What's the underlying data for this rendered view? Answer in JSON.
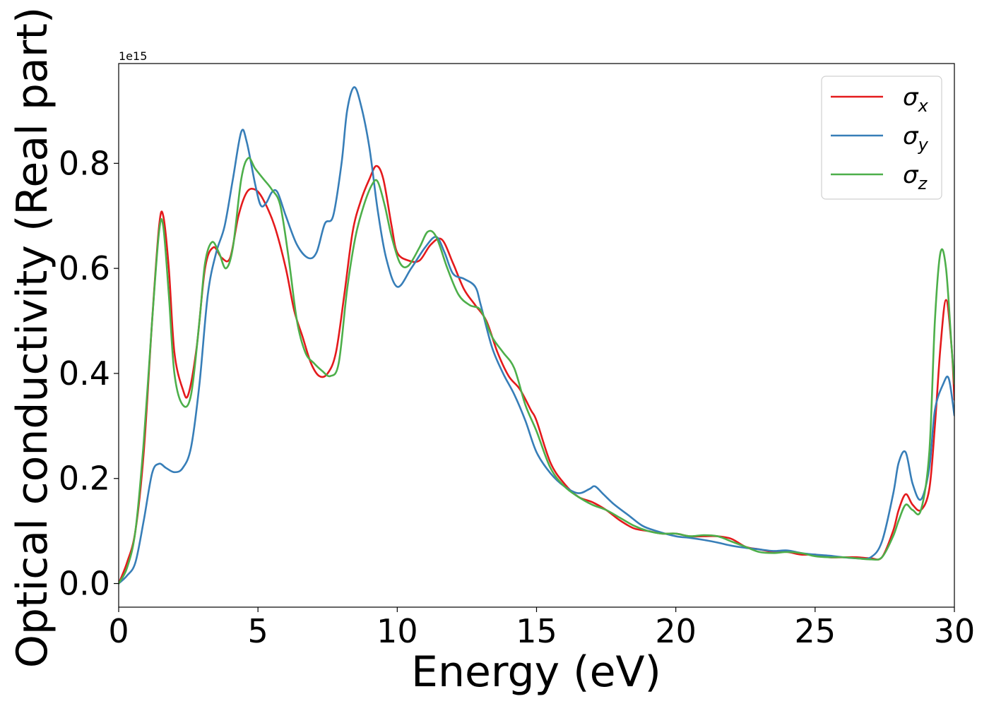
{
  "chart_data": {
    "type": "line",
    "title": "",
    "xlabel": "Energy (eV)",
    "ylabel": "Optical conductivity (Real part)",
    "y_offset_text": "1e15",
    "xlim": [
      0,
      30
    ],
    "ylim": [
      -0.045,
      0.99
    ],
    "x_ticks": [
      0,
      5,
      10,
      15,
      20,
      25,
      30
    ],
    "x_tick_labels": [
      "0",
      "5",
      "10",
      "15",
      "20",
      "25",
      "30"
    ],
    "y_ticks": [
      0.0,
      0.2,
      0.4,
      0.6,
      0.8
    ],
    "y_tick_labels": [
      "0.0",
      "0.2",
      "0.4",
      "0.6",
      "0.8"
    ],
    "grid": false,
    "legend_position": "top-right",
    "series": [
      {
        "name": "σx",
        "legend_base": "σ",
        "legend_sub": "x",
        "color": "#e41a1c",
        "x": [
          0,
          0.3,
          0.6,
          0.9,
          1.2,
          1.45,
          1.6,
          1.8,
          2.0,
          2.3,
          2.5,
          2.8,
          3.1,
          3.4,
          3.7,
          4.0,
          4.3,
          4.6,
          4.9,
          5.2,
          5.6,
          6.0,
          6.3,
          6.6,
          6.9,
          7.2,
          7.5,
          7.8,
          8.1,
          8.4,
          8.7,
          9.0,
          9.25,
          9.5,
          9.8,
          10.0,
          10.4,
          10.8,
          11.2,
          11.6,
          12.0,
          12.4,
          12.8,
          13.2,
          13.6,
          14.0,
          14.4,
          14.8,
          15.0,
          15.5,
          16.0,
          16.5,
          17.0,
          17.5,
          18.0,
          18.5,
          19.0,
          19.5,
          20.0,
          20.5,
          21.0,
          21.5,
          22.0,
          22.5,
          23.0,
          23.5,
          24.0,
          24.5,
          25.0,
          25.5,
          26.0,
          26.5,
          27.0,
          27.4,
          27.8,
          28.0,
          28.25,
          28.5,
          28.8,
          29.1,
          29.3,
          29.5,
          29.7,
          29.9,
          30.0
        ],
        "y": [
          0.0,
          0.04,
          0.1,
          0.25,
          0.5,
          0.68,
          0.7,
          0.6,
          0.44,
          0.37,
          0.36,
          0.45,
          0.6,
          0.64,
          0.62,
          0.62,
          0.7,
          0.745,
          0.75,
          0.73,
          0.68,
          0.6,
          0.52,
          0.47,
          0.42,
          0.395,
          0.4,
          0.44,
          0.55,
          0.67,
          0.73,
          0.77,
          0.795,
          0.77,
          0.68,
          0.63,
          0.615,
          0.615,
          0.645,
          0.655,
          0.61,
          0.56,
          0.53,
          0.5,
          0.44,
          0.395,
          0.37,
          0.33,
          0.31,
          0.23,
          0.19,
          0.165,
          0.155,
          0.14,
          0.12,
          0.105,
          0.1,
          0.095,
          0.095,
          0.09,
          0.09,
          0.09,
          0.085,
          0.07,
          0.065,
          0.06,
          0.06,
          0.055,
          0.055,
          0.05,
          0.05,
          0.05,
          0.048,
          0.05,
          0.1,
          0.14,
          0.17,
          0.15,
          0.14,
          0.18,
          0.3,
          0.45,
          0.54,
          0.45,
          0.35
        ]
      },
      {
        "name": "σy",
        "legend_base": "σ",
        "legend_sub": "y",
        "color": "#377eb8",
        "x": [
          0,
          0.3,
          0.6,
          0.9,
          1.2,
          1.45,
          1.7,
          2.0,
          2.3,
          2.6,
          2.9,
          3.2,
          3.5,
          3.8,
          4.1,
          4.4,
          4.6,
          4.9,
          5.1,
          5.3,
          5.5,
          5.7,
          6.0,
          6.4,
          6.8,
          7.1,
          7.4,
          7.7,
          8.0,
          8.2,
          8.45,
          8.7,
          9.0,
          9.3,
          9.6,
          10.0,
          10.5,
          11.0,
          11.4,
          11.7,
          12.0,
          12.4,
          12.8,
          13.0,
          13.4,
          13.8,
          14.2,
          14.6,
          15.0,
          15.5,
          16.0,
          16.5,
          16.9,
          17.1,
          17.4,
          17.8,
          18.3,
          18.8,
          19.3,
          20.0,
          20.5,
          21.0,
          21.5,
          22.0,
          22.5,
          23.0,
          23.5,
          24.0,
          24.5,
          25.0,
          25.5,
          26.0,
          26.5,
          27.0,
          27.4,
          27.8,
          28.0,
          28.25,
          28.5,
          28.8,
          29.1,
          29.3,
          29.6,
          29.8,
          30.0
        ],
        "y": [
          0.0,
          0.015,
          0.04,
          0.12,
          0.21,
          0.228,
          0.22,
          0.212,
          0.22,
          0.26,
          0.38,
          0.55,
          0.63,
          0.68,
          0.77,
          0.86,
          0.84,
          0.76,
          0.72,
          0.725,
          0.745,
          0.745,
          0.7,
          0.645,
          0.62,
          0.63,
          0.685,
          0.7,
          0.8,
          0.9,
          0.945,
          0.91,
          0.83,
          0.71,
          0.62,
          0.565,
          0.6,
          0.64,
          0.66,
          0.63,
          0.59,
          0.58,
          0.565,
          0.53,
          0.45,
          0.4,
          0.36,
          0.31,
          0.25,
          0.21,
          0.185,
          0.172,
          0.18,
          0.185,
          0.17,
          0.15,
          0.13,
          0.11,
          0.1,
          0.09,
          0.087,
          0.083,
          0.078,
          0.072,
          0.068,
          0.065,
          0.062,
          0.063,
          0.058,
          0.055,
          0.053,
          0.05,
          0.048,
          0.05,
          0.08,
          0.17,
          0.23,
          0.25,
          0.19,
          0.16,
          0.22,
          0.33,
          0.38,
          0.39,
          0.32
        ]
      },
      {
        "name": "σz",
        "legend_base": "σ",
        "legend_sub": "z",
        "color": "#4daf4a",
        "x": [
          0,
          0.3,
          0.6,
          0.9,
          1.2,
          1.45,
          1.6,
          1.8,
          2.0,
          2.3,
          2.6,
          2.9,
          3.1,
          3.35,
          3.6,
          3.85,
          4.1,
          4.4,
          4.65,
          4.9,
          5.2,
          5.5,
          5.8,
          6.1,
          6.4,
          6.7,
          7.0,
          7.3,
          7.6,
          7.9,
          8.2,
          8.5,
          8.8,
          9.1,
          9.3,
          9.55,
          9.8,
          10.1,
          10.4,
          10.8,
          11.1,
          11.4,
          11.8,
          12.2,
          12.6,
          13.0,
          13.4,
          13.8,
          14.2,
          14.6,
          15.0,
          15.5,
          16.0,
          16.5,
          17.0,
          17.5,
          18.0,
          18.5,
          19.0,
          19.5,
          20.0,
          20.5,
          21.0,
          21.5,
          22.0,
          22.5,
          23.0,
          23.5,
          24.0,
          24.5,
          25.0,
          25.5,
          26.0,
          26.5,
          27.0,
          27.4,
          27.8,
          28.0,
          28.25,
          28.5,
          28.8,
          29.1,
          29.3,
          29.5,
          29.7,
          29.9,
          30.0
        ],
        "y": [
          0.0,
          0.03,
          0.1,
          0.27,
          0.5,
          0.67,
          0.68,
          0.55,
          0.4,
          0.34,
          0.36,
          0.5,
          0.61,
          0.65,
          0.63,
          0.6,
          0.64,
          0.77,
          0.81,
          0.79,
          0.77,
          0.75,
          0.72,
          0.62,
          0.5,
          0.44,
          0.42,
          0.405,
          0.395,
          0.42,
          0.56,
          0.66,
          0.72,
          0.76,
          0.765,
          0.72,
          0.66,
          0.61,
          0.605,
          0.64,
          0.67,
          0.66,
          0.6,
          0.55,
          0.53,
          0.52,
          0.47,
          0.44,
          0.41,
          0.34,
          0.29,
          0.22,
          0.185,
          0.165,
          0.15,
          0.14,
          0.125,
          0.11,
          0.1,
          0.095,
          0.095,
          0.09,
          0.092,
          0.09,
          0.08,
          0.07,
          0.06,
          0.058,
          0.06,
          0.058,
          0.052,
          0.05,
          0.05,
          0.048,
          0.046,
          0.05,
          0.09,
          0.12,
          0.15,
          0.14,
          0.14,
          0.25,
          0.5,
          0.63,
          0.6,
          0.45,
          0.38
        ]
      }
    ]
  }
}
